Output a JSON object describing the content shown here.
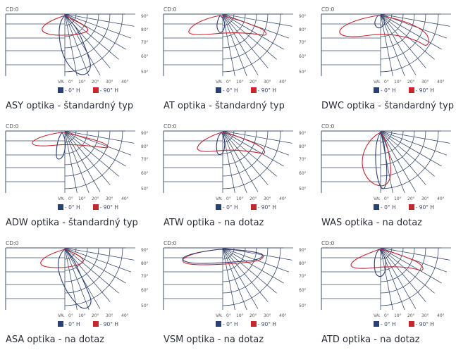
{
  "colors": {
    "grid": "#3d4f72",
    "curve_0": "#2b3f73",
    "curve_90": "#c8262f"
  },
  "legend": {
    "label_0": "0° H",
    "label_90": "90° H",
    "prefix": "- "
  },
  "axis": {
    "cd_label": "CD:0",
    "va_label": "VA:",
    "bottom_ticks": [
      "0°",
      "10°",
      "20°",
      "30°",
      "40°"
    ],
    "right_ticks": [
      "90°",
      "80°",
      "70°",
      "60°",
      "50°"
    ]
  },
  "panels": [
    {
      "caption": "ASY optika - štandardný typ",
      "shape": "asy"
    },
    {
      "caption": "AT optika - štandardný typ",
      "shape": "at"
    },
    {
      "caption": "DWC optika - štandardný typ",
      "shape": "dwc"
    },
    {
      "caption": "ADW optika - štandardný typ",
      "shape": "adw"
    },
    {
      "caption": "ATW optika - na dotaz",
      "shape": "atw"
    },
    {
      "caption": "WAS optika - na dotaz",
      "shape": "was"
    },
    {
      "caption": "ASA optika - na dotaz",
      "shape": "asa"
    },
    {
      "caption": "VSM optika - na dotaz",
      "shape": "vsm"
    },
    {
      "caption": "ATD optika - na dotaz",
      "shape": "atd"
    }
  ]
}
